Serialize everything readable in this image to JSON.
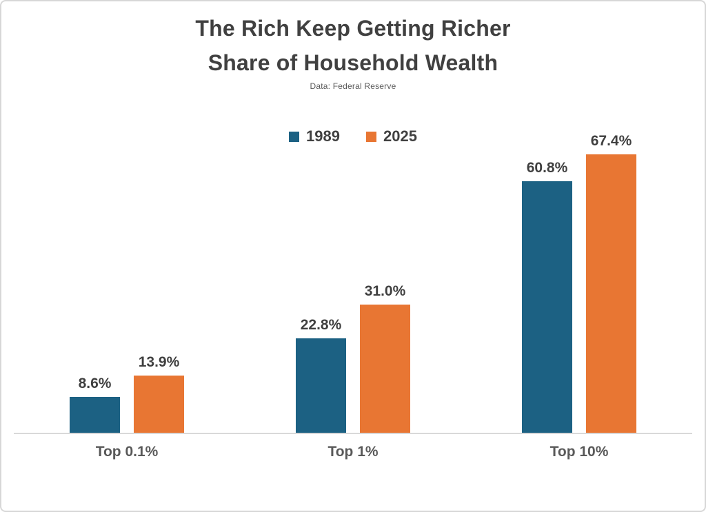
{
  "header": {
    "title_line1": "The Rich Keep Getting Richer",
    "title_line2": "Share of Household Wealth",
    "source_note": "Data: Federal Reserve"
  },
  "chart_data": {
    "type": "bar",
    "title": "The Rich Keep Getting Richer",
    "subtitle": "Share of Household Wealth",
    "source": "Data: Federal Reserve",
    "categories": [
      "Top 0.1%",
      "Top 1%",
      "Top 10%"
    ],
    "series": [
      {
        "name": "1989",
        "color": "#1C6183",
        "values": [
          8.6,
          22.8,
          60.8
        ],
        "labels": [
          "8.6%",
          "22.8%",
          "60.8%"
        ]
      },
      {
        "name": "2025",
        "color": "#E87633",
        "values": [
          13.9,
          31.0,
          67.4
        ],
        "labels": [
          "13.9%",
          "31.0%",
          "67.4%"
        ]
      }
    ],
    "unit": "%",
    "ylim": [
      0,
      70
    ],
    "grid": false,
    "data_labels": true,
    "legend_position": "top-center"
  },
  "colors": {
    "series_1989": "#1C6183",
    "series_2025": "#E87633",
    "title_text": "#404040",
    "value_label_text": "#3F3F3F",
    "category_text": "#595959",
    "axis_line": "#D9D9D9",
    "canvas_border": "#D7D7D7",
    "background": "#FFFFFF"
  }
}
